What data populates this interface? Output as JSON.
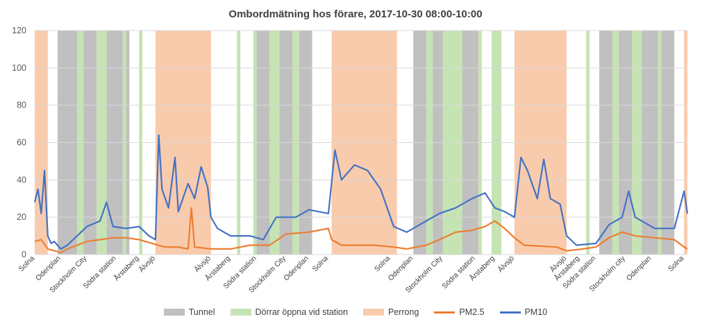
{
  "chart_data": {
    "type": "line",
    "title": "Ombordmätning hos förare, 2017-10-30 08:00-10:00",
    "ylim": [
      0,
      120
    ],
    "yticks": [
      "0",
      "20",
      "40",
      "60",
      "80",
      "100",
      "120"
    ],
    "x_labels": [
      "Solna",
      "Odenplan",
      "Stockholm City",
      "Södra station",
      "Årstaberg",
      "Älvsjö",
      "Älvsjö",
      "Årstaberg",
      "Södra station",
      "Stockholm City",
      "Odenplan",
      "Solna",
      "Solna",
      "Odenplan",
      "Stockholm City",
      "Södra station",
      "Årstaberg",
      "Älvsjö",
      "Älvsjö",
      "Årstaberg",
      "Södra station",
      "Stockholm city",
      "Odenplan",
      "Solna"
    ],
    "x_label_pos": [
      0.0,
      0.04,
      0.08,
      0.125,
      0.16,
      0.185,
      0.27,
      0.3,
      0.34,
      0.385,
      0.42,
      0.45,
      0.545,
      0.58,
      0.625,
      0.675,
      0.705,
      0.735,
      0.815,
      0.835,
      0.86,
      0.905,
      0.945,
      0.995
    ],
    "bands": [
      {
        "type": "perrong",
        "from": 0.0,
        "to": 0.02
      },
      {
        "type": "tunnel",
        "from": 0.035,
        "to": 0.065
      },
      {
        "type": "doors",
        "from": 0.065,
        "to": 0.075
      },
      {
        "type": "tunnel",
        "from": 0.075,
        "to": 0.095
      },
      {
        "type": "doors",
        "from": 0.095,
        "to": 0.11
      },
      {
        "type": "tunnel",
        "from": 0.11,
        "to": 0.135
      },
      {
        "type": "doors",
        "from": 0.135,
        "to": 0.14
      },
      {
        "type": "tunnel",
        "from": 0.14,
        "to": 0.145
      },
      {
        "type": "doors",
        "from": 0.16,
        "to": 0.165
      },
      {
        "type": "perrong",
        "from": 0.185,
        "to": 0.27
      },
      {
        "type": "doors",
        "from": 0.31,
        "to": 0.315
      },
      {
        "type": "doors",
        "from": 0.335,
        "to": 0.34
      },
      {
        "type": "tunnel",
        "from": 0.34,
        "to": 0.36
      },
      {
        "type": "doors",
        "from": 0.36,
        "to": 0.375
      },
      {
        "type": "tunnel",
        "from": 0.375,
        "to": 0.395
      },
      {
        "type": "doors",
        "from": 0.395,
        "to": 0.405
      },
      {
        "type": "tunnel",
        "from": 0.405,
        "to": 0.425
      },
      {
        "type": "perrong",
        "from": 0.455,
        "to": 0.555
      },
      {
        "type": "tunnel",
        "from": 0.58,
        "to": 0.6
      },
      {
        "type": "doors",
        "from": 0.6,
        "to": 0.61
      },
      {
        "type": "tunnel",
        "from": 0.61,
        "to": 0.625
      },
      {
        "type": "doors",
        "from": 0.625,
        "to": 0.655
      },
      {
        "type": "tunnel",
        "from": 0.655,
        "to": 0.68
      },
      {
        "type": "doors",
        "from": 0.68,
        "to": 0.685
      },
      {
        "type": "doors",
        "from": 0.7,
        "to": 0.715
      },
      {
        "type": "perrong",
        "from": 0.735,
        "to": 0.815
      },
      {
        "type": "doors",
        "from": 0.845,
        "to": 0.85
      },
      {
        "type": "tunnel",
        "from": 0.865,
        "to": 0.885
      },
      {
        "type": "doors",
        "from": 0.885,
        "to": 0.895
      },
      {
        "type": "tunnel",
        "from": 0.895,
        "to": 0.915
      },
      {
        "type": "doors",
        "from": 0.915,
        "to": 0.93
      },
      {
        "type": "tunnel",
        "from": 0.93,
        "to": 0.955
      },
      {
        "type": "doors",
        "from": 0.955,
        "to": 0.96
      },
      {
        "type": "tunnel",
        "from": 0.96,
        "to": 0.98
      },
      {
        "type": "perrong",
        "from": 0.995,
        "to": 1.0
      }
    ],
    "series": [
      {
        "name": "PM2.5",
        "color": "#ED7D31",
        "points": [
          [
            0.0,
            7
          ],
          [
            0.01,
            8
          ],
          [
            0.02,
            3
          ],
          [
            0.03,
            2
          ],
          [
            0.04,
            1
          ],
          [
            0.05,
            3
          ],
          [
            0.065,
            5
          ],
          [
            0.08,
            7
          ],
          [
            0.1,
            8
          ],
          [
            0.12,
            9
          ],
          [
            0.14,
            9
          ],
          [
            0.16,
            8
          ],
          [
            0.18,
            6
          ],
          [
            0.2,
            4
          ],
          [
            0.22,
            4
          ],
          [
            0.235,
            3
          ],
          [
            0.24,
            25
          ],
          [
            0.245,
            4
          ],
          [
            0.27,
            3
          ],
          [
            0.3,
            3
          ],
          [
            0.33,
            5
          ],
          [
            0.36,
            5
          ],
          [
            0.385,
            11
          ],
          [
            0.42,
            12
          ],
          [
            0.45,
            14
          ],
          [
            0.455,
            8
          ],
          [
            0.47,
            5
          ],
          [
            0.52,
            5
          ],
          [
            0.55,
            4
          ],
          [
            0.57,
            3
          ],
          [
            0.6,
            5
          ],
          [
            0.62,
            8
          ],
          [
            0.645,
            12
          ],
          [
            0.67,
            13
          ],
          [
            0.69,
            15
          ],
          [
            0.705,
            18
          ],
          [
            0.72,
            14
          ],
          [
            0.735,
            9
          ],
          [
            0.75,
            5
          ],
          [
            0.8,
            4
          ],
          [
            0.815,
            2
          ],
          [
            0.84,
            3
          ],
          [
            0.86,
            4
          ],
          [
            0.88,
            9
          ],
          [
            0.9,
            12
          ],
          [
            0.92,
            10
          ],
          [
            0.95,
            9
          ],
          [
            0.98,
            8
          ],
          [
            0.995,
            4
          ],
          [
            1.0,
            3
          ]
        ]
      },
      {
        "name": "PM10",
        "color": "#4472C4",
        "points": [
          [
            0.0,
            28
          ],
          [
            0.005,
            35
          ],
          [
            0.01,
            22
          ],
          [
            0.015,
            45
          ],
          [
            0.02,
            10
          ],
          [
            0.025,
            6
          ],
          [
            0.03,
            7
          ],
          [
            0.04,
            3
          ],
          [
            0.05,
            5
          ],
          [
            0.065,
            10
          ],
          [
            0.08,
            15
          ],
          [
            0.1,
            18
          ],
          [
            0.11,
            28
          ],
          [
            0.12,
            15
          ],
          [
            0.14,
            14
          ],
          [
            0.16,
            15
          ],
          [
            0.175,
            10
          ],
          [
            0.185,
            8
          ],
          [
            0.19,
            64
          ],
          [
            0.195,
            35
          ],
          [
            0.205,
            25
          ],
          [
            0.215,
            52
          ],
          [
            0.22,
            23
          ],
          [
            0.235,
            38
          ],
          [
            0.245,
            30
          ],
          [
            0.255,
            47
          ],
          [
            0.265,
            36
          ],
          [
            0.27,
            20
          ],
          [
            0.28,
            14
          ],
          [
            0.3,
            10
          ],
          [
            0.33,
            10
          ],
          [
            0.35,
            8
          ],
          [
            0.37,
            20
          ],
          [
            0.4,
            20
          ],
          [
            0.42,
            24
          ],
          [
            0.45,
            22
          ],
          [
            0.46,
            56
          ],
          [
            0.47,
            40
          ],
          [
            0.49,
            48
          ],
          [
            0.51,
            45
          ],
          [
            0.53,
            35
          ],
          [
            0.55,
            15
          ],
          [
            0.57,
            12
          ],
          [
            0.6,
            18
          ],
          [
            0.62,
            22
          ],
          [
            0.645,
            25
          ],
          [
            0.67,
            30
          ],
          [
            0.69,
            33
          ],
          [
            0.705,
            25
          ],
          [
            0.72,
            23
          ],
          [
            0.735,
            20
          ],
          [
            0.745,
            52
          ],
          [
            0.755,
            45
          ],
          [
            0.77,
            30
          ],
          [
            0.78,
            51
          ],
          [
            0.79,
            30
          ],
          [
            0.805,
            27
          ],
          [
            0.815,
            10
          ],
          [
            0.83,
            5
          ],
          [
            0.86,
            6
          ],
          [
            0.88,
            16
          ],
          [
            0.9,
            20
          ],
          [
            0.91,
            34
          ],
          [
            0.92,
            20
          ],
          [
            0.95,
            14
          ],
          [
            0.98,
            14
          ],
          [
            0.995,
            34
          ],
          [
            1.0,
            22
          ]
        ]
      }
    ],
    "legend": [
      {
        "label": "Tunnel",
        "kind": "box",
        "color": "#C0C0C0"
      },
      {
        "label": "Dörrar öppna vid station",
        "kind": "box",
        "color": "#C6E3B4"
      },
      {
        "label": "Perrong",
        "kind": "box",
        "color": "#F8CBAD"
      },
      {
        "label": "PM2.5",
        "kind": "line",
        "color": "#ED7D31"
      },
      {
        "label": "PM10",
        "kind": "line",
        "color": "#4472C4"
      }
    ],
    "band_colors": {
      "tunnel": "#C0C0C0",
      "doors": "#C6E3B4",
      "perrong": "#F8CBAD"
    },
    "grid": true
  }
}
